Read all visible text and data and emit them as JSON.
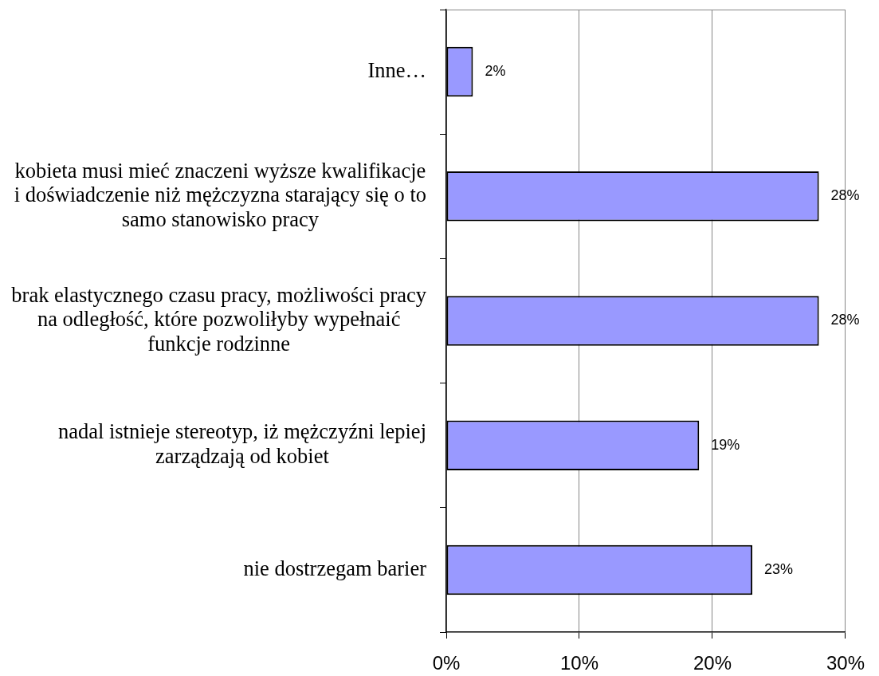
{
  "chart_data": {
    "type": "bar",
    "orientation": "horizontal",
    "categories": [
      "Inne…",
      "kobieta musi mieć znaczeni wyższe kwalifikacje i doświadczenie niż mężczyzna starający się o to samo stanowisko pracy",
      "brak elastycznego czasu pracy, możliwości pracy na odległość, które pozwoliłyby wypełnaić funkcje rodzinne",
      "nadal istnieje stereotyp, iż mężczyźni lepiej zarządzają od kobiet",
      "nie dostrzegam barier"
    ],
    "values": [
      2,
      28,
      28,
      19,
      23
    ],
    "color": "#9999ff",
    "value_labels": [
      "2%",
      "28%",
      "28%",
      "19%",
      "23%"
    ],
    "xlim": [
      0,
      30
    ],
    "xticks": [
      {
        "value": 0,
        "label": "0%"
      },
      {
        "value": 10,
        "label": "10%"
      },
      {
        "value": 20,
        "label": "20%"
      },
      {
        "value": 30,
        "label": "30%"
      }
    ],
    "grid": "x"
  }
}
